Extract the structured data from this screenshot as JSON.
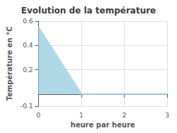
{
  "chart_data": {
    "type": "area",
    "title": "Evolution de la température",
    "xlabel": "heure par heure",
    "ylabel": "Température en °C",
    "x": [
      0,
      1,
      3
    ],
    "values": [
      0.55,
      0.0,
      0.0
    ],
    "color": "#aed8e6",
    "xlim": [
      0,
      3
    ],
    "ylim": [
      -0.1,
      0.6
    ],
    "xticks": [
      0,
      1,
      2,
      3
    ],
    "yticks": [
      -0.1,
      0.2,
      0.4,
      0.6
    ],
    "grid": true
  }
}
